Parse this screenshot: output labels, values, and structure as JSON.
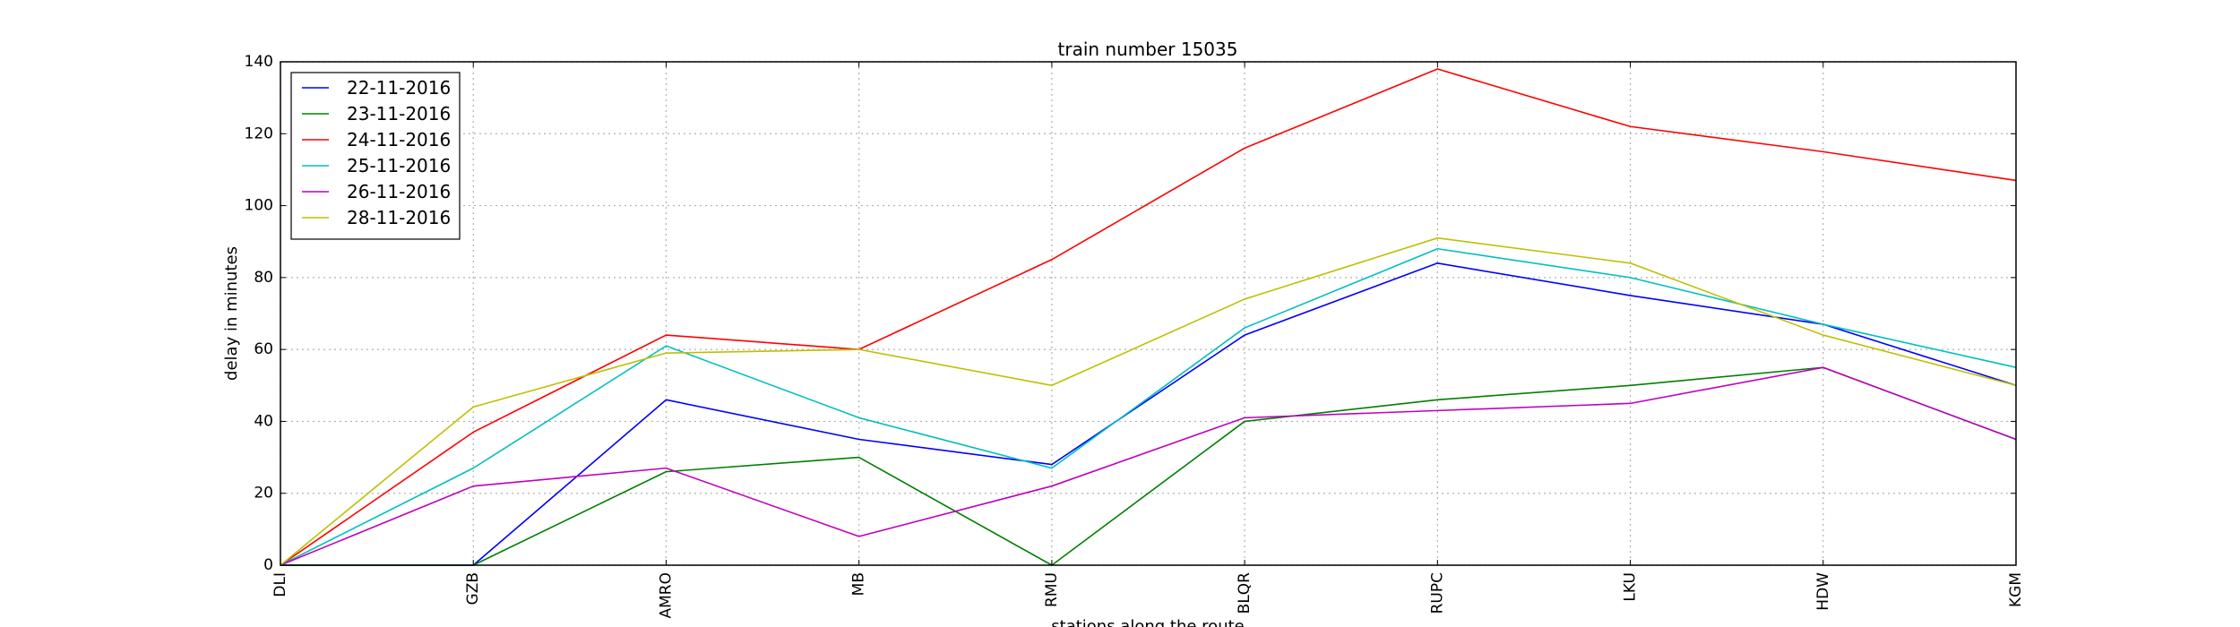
{
  "chart_data": {
    "type": "line",
    "title": "train number 15035",
    "xlabel": "stations along the route",
    "ylabel": "delay in minutes",
    "categories": [
      "DLI",
      "GZB",
      "AMRO",
      "MB",
      "RMU",
      "BLQR",
      "RUPC",
      "LKU",
      "HDW",
      "KGM"
    ],
    "ylim": [
      0,
      140
    ],
    "yticks": [
      0,
      20,
      40,
      60,
      80,
      100,
      120,
      140
    ],
    "grid": true,
    "legend_position": "top-left",
    "series": [
      {
        "name": "22-11-2016",
        "color": "#0000ff",
        "values": [
          0,
          0,
          46,
          35,
          28,
          64,
          84,
          75,
          67,
          50
        ]
      },
      {
        "name": "23-11-2016",
        "color": "#008000",
        "values": [
          0,
          0,
          26,
          30,
          0,
          40,
          46,
          50,
          55,
          35
        ]
      },
      {
        "name": "24-11-2016",
        "color": "#ff0000",
        "values": [
          0,
          37,
          64,
          60,
          85,
          116,
          138,
          122,
          115,
          107
        ]
      },
      {
        "name": "25-11-2016",
        "color": "#00bfbf",
        "values": [
          0,
          27,
          61,
          41,
          27,
          66,
          88,
          80,
          67,
          55
        ]
      },
      {
        "name": "26-11-2016",
        "color": "#bf00bf",
        "values": [
          0,
          22,
          27,
          8,
          22,
          41,
          43,
          45,
          55,
          35
        ]
      },
      {
        "name": "28-11-2016",
        "color": "#bfbf00",
        "values": [
          0,
          44,
          59,
          60,
          50,
          74,
          91,
          84,
          64,
          50
        ]
      }
    ]
  }
}
